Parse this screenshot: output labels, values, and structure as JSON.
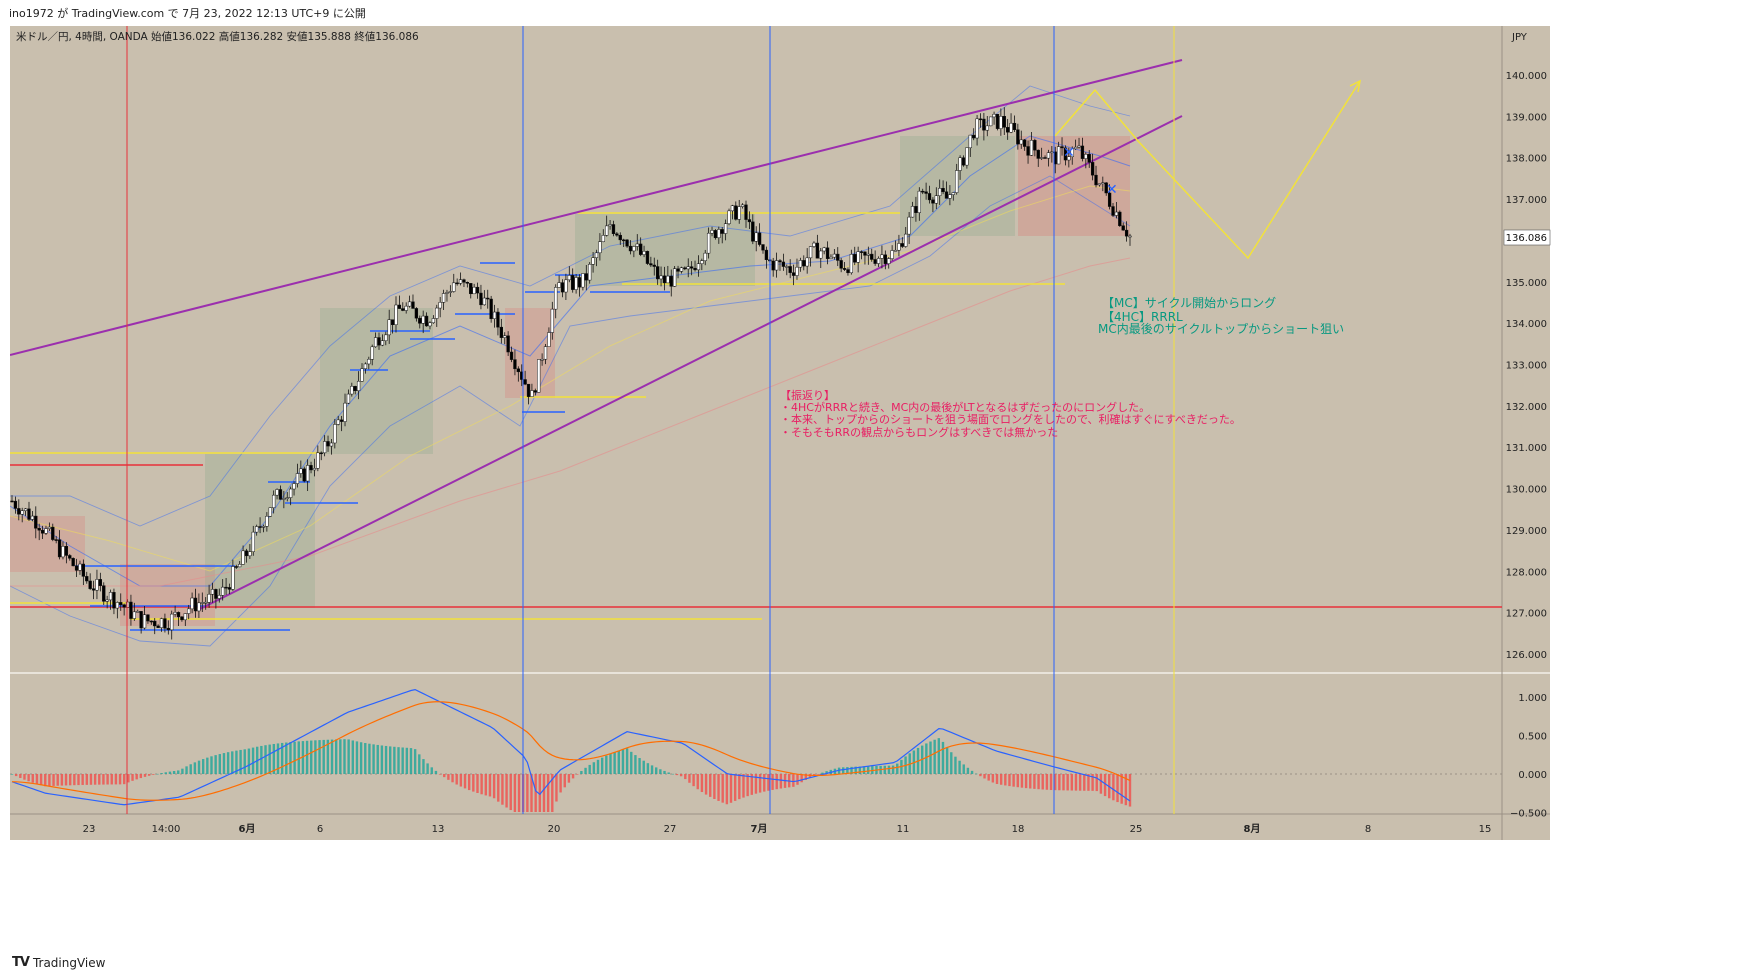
{
  "header": {
    "publish_line": "ino1972 が TradingView.com で 7月 23, 2022 12:13 UTC+9 に公開",
    "symbol": "米ドル／円, 4時間, OANDA",
    "ohlc": "始値136.022  高値136.282  安値135.888  終値136.086"
  },
  "footer": {
    "brand": "TradingView"
  },
  "colors": {
    "background": "#c9bfae",
    "pane_border": "#e8e3da",
    "trendline": "#9b2fae",
    "yellow": "#f2e23a",
    "red": "#e8313a",
    "blue": "#2962ff",
    "bull": "#ffffff",
    "bear": "#000000",
    "macd": "#2962ff",
    "signal": "#ff6d00",
    "hist_pos": "#26a69a",
    "hist_neg": "#ef5350",
    "annotation_green": "#089981",
    "annotation_red": "#e91e63"
  },
  "chart_data": {
    "type": "candlestick",
    "currency_label": "JPY",
    "last_price": "136.086",
    "price_axis": {
      "min": 125.6,
      "max": 140.85,
      "ticks": [
        "126.000",
        "127.000",
        "128.000",
        "129.000",
        "130.000",
        "131.000",
        "132.000",
        "133.000",
        "134.000",
        "135.000",
        "136.000",
        "137.000",
        "138.000",
        "139.000",
        "140.000"
      ]
    },
    "macd_axis": {
      "min": -0.55,
      "max": 1.2,
      "ticks": [
        "1.000",
        "0.500",
        "0.000",
        "−0.500"
      ]
    },
    "time_axis": {
      "labels": [
        "23",
        "14:00",
        "6月",
        "6",
        "13",
        "20",
        "27",
        "7月",
        "11",
        "18",
        "25",
        "8月",
        "8",
        "15"
      ]
    },
    "price_path": [
      [
        0,
        129.7
      ],
      [
        1,
        129.2
      ],
      [
        2,
        128.4
      ],
      [
        3,
        127.7
      ],
      [
        4,
        127.3
      ],
      [
        5,
        126.8
      ],
      [
        6,
        126.8
      ],
      [
        7,
        127.2
      ],
      [
        8,
        127.4
      ],
      [
        9,
        128.4
      ],
      [
        10,
        129.7
      ],
      [
        11,
        130.2
      ],
      [
        12,
        130.9
      ],
      [
        13,
        132.2
      ],
      [
        14,
        133.6
      ],
      [
        15,
        134.4
      ],
      [
        16,
        134.1
      ],
      [
        17,
        135.0
      ],
      [
        18,
        134.7
      ],
      [
        19,
        133.6
      ],
      [
        20,
        132.2
      ],
      [
        21,
        134.9
      ],
      [
        22,
        135.0
      ],
      [
        23,
        136.4
      ],
      [
        24,
        135.8
      ],
      [
        25,
        135.0
      ],
      [
        26,
        135.2
      ],
      [
        27,
        136.2
      ],
      [
        28,
        136.8
      ],
      [
        29,
        135.5
      ],
      [
        30,
        135.3
      ],
      [
        31,
        135.8
      ],
      [
        32,
        135.4
      ],
      [
        33,
        135.6
      ],
      [
        34,
        135.7
      ],
      [
        35,
        137.2
      ],
      [
        36,
        137.0
      ],
      [
        37,
        138.7
      ],
      [
        38,
        138.9
      ],
      [
        39,
        138.3
      ],
      [
        40,
        138.0
      ],
      [
        41,
        138.2
      ],
      [
        42,
        137.2
      ],
      [
        43,
        136.1
      ]
    ],
    "annotations": {
      "plan_lines": [
        "【MC】サイクル開始からロング",
        "【4HC】RRRL",
        "MC内最後のサイクルトップからショート狙い"
      ],
      "review_lines": [
        "【振返り】",
        "・4HCがRRRと続き、MC内の最後がLTとなるはずだったのにロングした。",
        "・本来、トップからのショートを狙う場面でロングをしたので、利確はすぐにすべきだった。",
        "・そもそもRRの観点からもロングはすべきでは無かった"
      ]
    }
  }
}
